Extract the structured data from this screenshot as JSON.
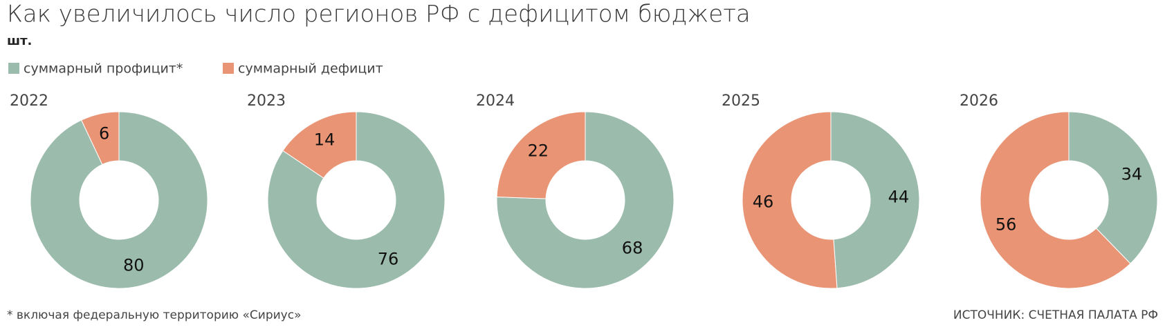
{
  "title": "Как увеличилось число регионов РФ с дефицитом бюджета",
  "unit": "шт.",
  "legend": [
    {
      "name": "суммарный профицит*",
      "color": "#9bbbad"
    },
    {
      "name": "суммарный дефицит",
      "color": "#e99575"
    }
  ],
  "footnote": "* включая федеральную территорию «Сириус»",
  "source": "ИСТОЧНИК: СЧЕТНАЯ ПАЛАТА РФ",
  "chart_data": [
    {
      "type": "donut",
      "title": "2022",
      "values": [
        80,
        6
      ]
    },
    {
      "type": "donut",
      "title": "2023",
      "values": [
        76,
        14
      ]
    },
    {
      "type": "donut",
      "title": "2024",
      "values": [
        68,
        22
      ]
    },
    {
      "type": "donut",
      "title": "2025",
      "values": [
        44,
        46
      ]
    },
    {
      "type": "donut",
      "title": "2026",
      "values": [
        34,
        56
      ]
    }
  ]
}
